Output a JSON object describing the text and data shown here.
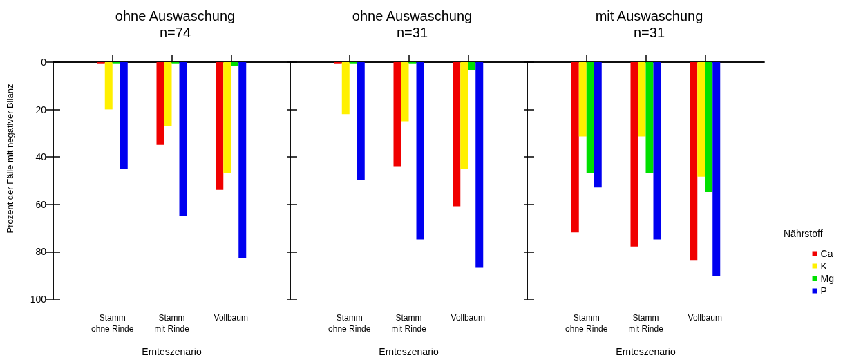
{
  "chart_data": [
    {
      "type": "bar",
      "title": "ohne Auswaschung",
      "subtitle": "n=74",
      "xlabel": "Ernteszenario",
      "ylabel": "Prozent der Fälle mit negativer Bilanz",
      "categories": [
        "Stamm\nohne Rinde",
        "Stamm\nmit Rinde",
        "Vollbaum"
      ],
      "ylim": [
        100,
        0
      ],
      "yticks": [
        0,
        20,
        40,
        60,
        80,
        100
      ],
      "legend": false,
      "series": [
        {
          "color": "#f00000",
          "values": [
            0.5,
            35,
            54
          ]
        },
        {
          "color": "#fff000",
          "values": [
            20,
            27,
            47
          ]
        },
        {
          "color": "#00e000",
          "values": [
            0.5,
            0.5,
            1.5
          ]
        },
        {
          "color": "#0000f0",
          "values": [
            45,
            65,
            83
          ]
        }
      ]
    },
    {
      "type": "bar",
      "title": "ohne Auswaschung",
      "subtitle": "n=31",
      "xlabel": "Ernteszenario",
      "categories": [
        "Stamm\nohne Rinde",
        "Stamm\nmit Rinde",
        "Vollbaum"
      ],
      "ylim": [
        100,
        0
      ],
      "yticks": [
        0,
        20,
        40,
        60,
        80,
        100
      ],
      "tick_labels": "x",
      "legend": false,
      "series": [
        {
          "color": "#f00000",
          "values": [
            0.5,
            44,
            61
          ]
        },
        {
          "color": "#fff000",
          "values": [
            22,
            25,
            45
          ]
        },
        {
          "color": "#00e000",
          "values": [
            0.5,
            0.5,
            3.4
          ]
        },
        {
          "color": "#0000f0",
          "values": [
            50,
            75,
            87
          ]
        }
      ]
    },
    {
      "type": "bar",
      "title": "mit Auswaschung",
      "subtitle": "n=31",
      "xlabel": "Ernteszenario",
      "categories": [
        "Stamm\nohne Rinde",
        "Stamm\nmit Rinde",
        "Vollbaum"
      ],
      "ylim": [
        100,
        0
      ],
      "yticks": [
        0,
        20,
        40,
        60,
        80,
        100
      ],
      "tick_labels": "x",
      "legend": "right",
      "legend_title": "Nährstoff",
      "series": [
        {
          "name": "Ca",
          "color": "#f00000",
          "values": [
            72,
            78,
            84
          ]
        },
        {
          "name": "K",
          "color": "#fff000",
          "values": [
            31.4,
            31.4,
            48.5
          ]
        },
        {
          "name": "Mg",
          "color": "#00e000",
          "values": [
            47,
            47,
            55
          ]
        },
        {
          "name": "P",
          "color": "#0000f0",
          "values": [
            53,
            75,
            90.5
          ]
        }
      ]
    }
  ]
}
